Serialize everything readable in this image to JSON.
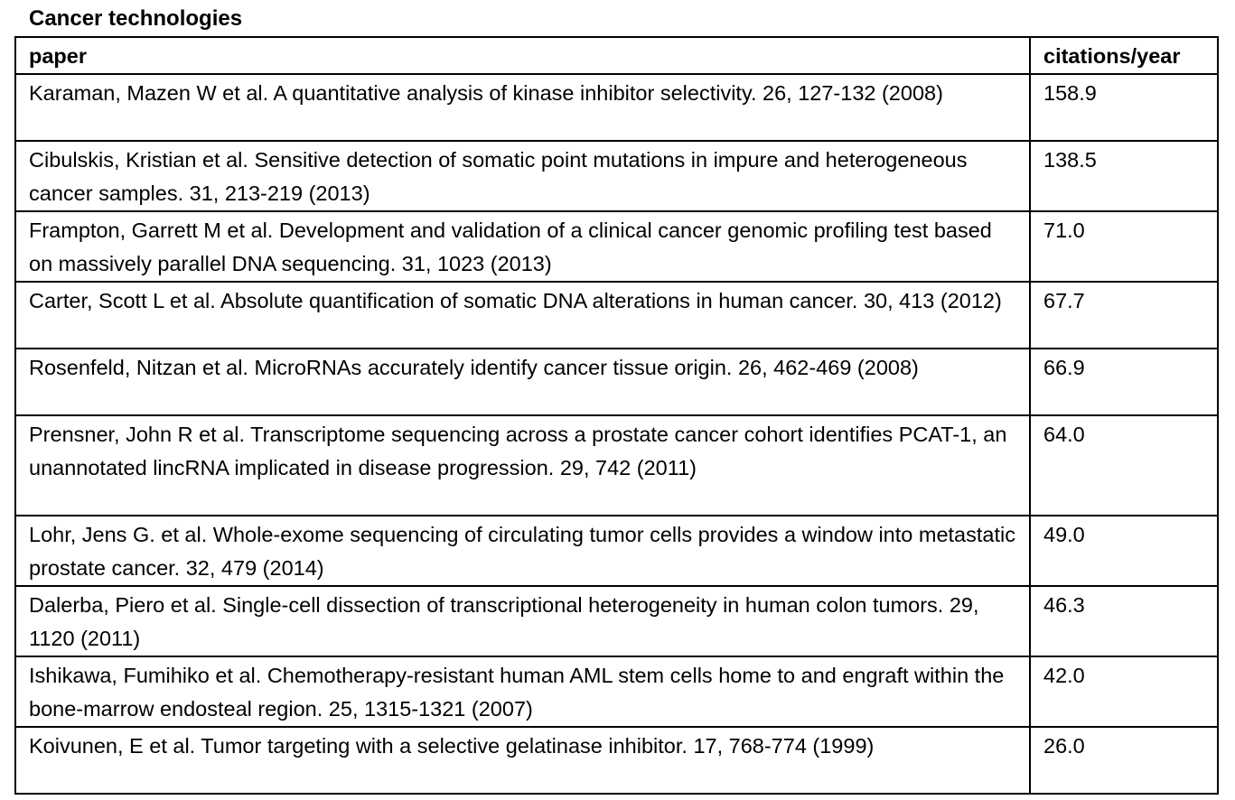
{
  "title": "Cancer technologies",
  "columns": [
    "paper",
    "citations/year"
  ],
  "rows": [
    {
      "paper": "Karaman, Mazen W et al. A quantitative analysis of kinase inhibitor selectivity. 26, 127-132 (2008)",
      "citations": "158.9"
    },
    {
      "paper": "Cibulskis, Kristian et al.  Sensitive detection of somatic point mutations in impure and heterogeneous cancer samples. 31, 213-219 (2013)",
      "citations": "138.5"
    },
    {
      "paper": "Frampton, Garrett M et al. Development and validation of a clinical cancer genomic profiling test based on massively parallel DNA sequencing. 31, 1023 (2013)",
      "citations": "71.0"
    },
    {
      "paper": "Carter, Scott L et al. Absolute quantification of somatic DNA alterations in human cancer. 30, 413 (2012)",
      "citations": "67.7"
    },
    {
      "paper": "Rosenfeld, Nitzan et al. MicroRNAs accurately identify cancer tissue origin. 26, 462-469 (2008)",
      "citations": "66.9"
    },
    {
      "paper": "Prensner, John R et al. Transcriptome sequencing across a prostate cancer cohort identifies PCAT-1, an unannotated lincRNA implicated in disease progression. 29, 742 (2011)",
      "citations": "64.0"
    },
    {
      "paper": "Lohr, Jens G. et al. Whole-exome sequencing of circulating tumor cells provides a window into metastatic prostate cancer. 32, 479 (2014)",
      "citations": "49.0"
    },
    {
      "paper": "Dalerba, Piero et al. Single-cell dissection of transcriptional heterogeneity in human colon tumors. 29, 1120 (2011)",
      "citations": "46.3"
    },
    {
      "paper": "Ishikawa, Fumihiko et al. Chemotherapy-resistant human AML stem cells home to and engraft within the bone-marrow endosteal region. 25, 1315-1321 (2007)",
      "citations": "42.0"
    },
    {
      "paper": "Koivunen, E et al. Tumor targeting with a selective gelatinase inhibitor. 17, 768-774 (1999)",
      "citations": "26.0"
    }
  ]
}
